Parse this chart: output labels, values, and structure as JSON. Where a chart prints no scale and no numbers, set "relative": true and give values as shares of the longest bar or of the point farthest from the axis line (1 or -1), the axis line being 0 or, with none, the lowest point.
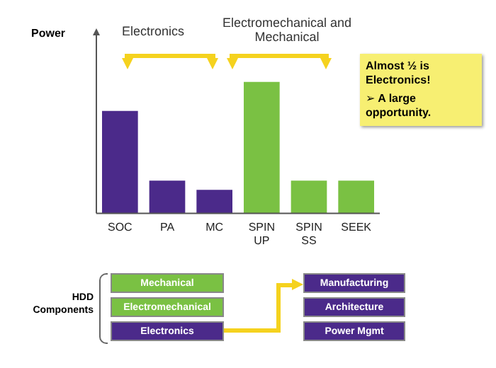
{
  "chart_data": {
    "type": "bar",
    "relative": true,
    "ylabel": "Power",
    "categories": [
      "SOC",
      "PA",
      "MC",
      "SPIN UP",
      "SPIN SS",
      "SEEK"
    ],
    "values": [
      0.78,
      0.25,
      0.18,
      1,
      0.25,
      0.25
    ],
    "colors": [
      "#4b2a8a",
      "#4b2a8a",
      "#4b2a8a",
      "#7ac143",
      "#7ac143",
      "#7ac143"
    ],
    "grid": false,
    "legend": false,
    "annotations": [
      "Electronics",
      "Electromechanical and Mechanical",
      "Almost ½ is Electronics!",
      "➢ A large opportunity.",
      "HDD Components",
      "Mechanical",
      "Electromechanical",
      "Electronics",
      "Manufacturing",
      "Architecture",
      "Power Mgmt"
    ]
  }
}
